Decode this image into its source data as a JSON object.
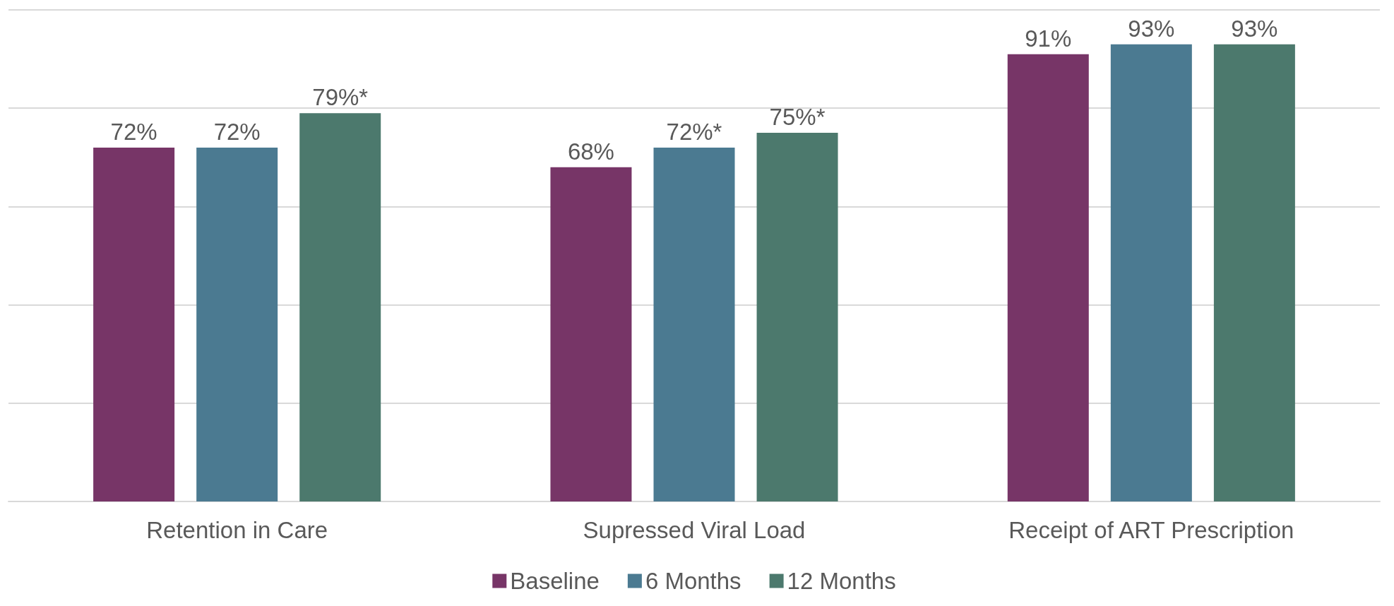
{
  "chart_data": {
    "type": "bar",
    "categories": [
      "Retention in Care",
      "Supressed Viral Load",
      "Receipt of ART Prescription"
    ],
    "series": [
      {
        "name": "Baseline",
        "color": "#773567",
        "values": [
          72,
          68,
          91
        ],
        "value_labels": [
          "72%",
          "68%",
          "91%"
        ]
      },
      {
        "name": "6 Months",
        "color": "#4b7a91",
        "values": [
          72,
          72,
          93
        ],
        "value_labels": [
          "72%",
          "72%*",
          "93%"
        ]
      },
      {
        "name": "12 Months",
        "color": "#4c796d",
        "values": [
          79,
          75,
          93
        ],
        "value_labels": [
          "79%*",
          "75%*",
          "93%"
        ]
      }
    ],
    "ylim": [
      0,
      100
    ],
    "yticks": [
      {
        "value": 0,
        "label": null
      },
      {
        "value": 20,
        "label": null
      },
      {
        "value": 40,
        "label": null
      },
      {
        "value": 60,
        "label": null
      },
      {
        "value": 80,
        "label": null
      },
      {
        "value": 100,
        "label": null
      }
    ],
    "tick_labels": "x",
    "grid": "y",
    "legend": "bottom"
  }
}
